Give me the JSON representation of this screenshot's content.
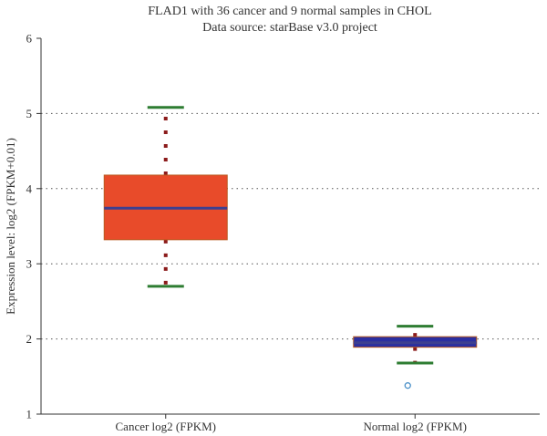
{
  "chart_data": {
    "type": "box",
    "title": "FLAD1 with 36 cancer and 9 normal samples in CHOL",
    "subtitle": "Data source: starBase v3.0 project",
    "ylabel": "Expression level: log2 (FPKM+0.01)",
    "xlabel": "",
    "ylim": [
      1,
      6
    ],
    "yticks": [
      1,
      2,
      3,
      4,
      5,
      6
    ],
    "grid": true,
    "categories": [
      "Cancer log2 (FPKM)",
      "Normal log2 (FPKM)"
    ],
    "boxes": [
      {
        "category": "Cancer log2 (FPKM)",
        "whisker_low": 2.7,
        "q1": 3.32,
        "median": 3.74,
        "q3": 4.18,
        "whisker_high": 5.08,
        "outliers": [],
        "box_color": "#E84B2A",
        "median_color": "#3D3F8F",
        "whisker_color": "#2E7D32",
        "dash_color": "#8B1A1A"
      },
      {
        "category": "Normal log2 (FPKM)",
        "whisker_low": 1.68,
        "q1": 1.89,
        "median": 1.95,
        "q3": 2.03,
        "whisker_high": 2.17,
        "outliers": [
          1.38
        ],
        "box_color": "#2B2FA0",
        "median_color": "#3D3F8F",
        "whisker_color": "#2E7D32",
        "dash_color": "#8B1A1A"
      }
    ]
  }
}
